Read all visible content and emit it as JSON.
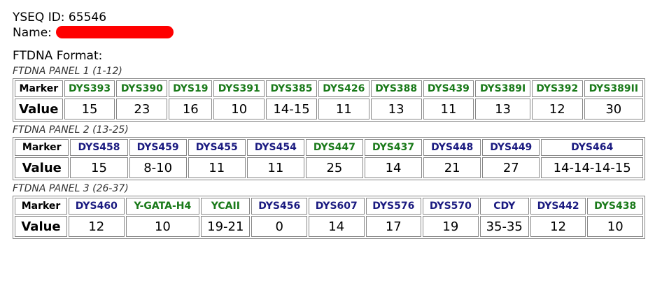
{
  "header": {
    "yseq_id": "YSEQ ID: 65546",
    "name": "Name:",
    "format": "FTDNA Format:"
  },
  "panels": [
    {
      "title": "FTDNA PANEL 1 (1-12)",
      "marker_label": "Marker",
      "value_label": "Value",
      "markers": [
        {
          "label": "DYS393",
          "color": "#1a7a1a"
        },
        {
          "label": "DYS390",
          "color": "#1a7a1a"
        },
        {
          "label": "DYS19",
          "color": "#1a7a1a"
        },
        {
          "label": "DYS391",
          "color": "#1a7a1a"
        },
        {
          "label": "DYS385",
          "color": "#1a7a1a"
        },
        {
          "label": "DYS426",
          "color": "#1a7a1a"
        },
        {
          "label": "DYS388",
          "color": "#1a7a1a"
        },
        {
          "label": "DYS439",
          "color": "#1a7a1a"
        },
        {
          "label": "DYS389I",
          "color": "#1a7a1a"
        },
        {
          "label": "DYS392",
          "color": "#1a7a1a"
        },
        {
          "label": "DYS389II",
          "color": "#1a7a1a"
        }
      ],
      "values": [
        "15",
        "23",
        "16",
        "10",
        "14-15",
        "11",
        "13",
        "11",
        "13",
        "12",
        "30"
      ]
    },
    {
      "title": "FTDNA PANEL 2 (13-25)",
      "marker_label": "Marker",
      "value_label": "Value",
      "markers": [
        {
          "label": "DYS458",
          "color": "#1a1a80"
        },
        {
          "label": "DYS459",
          "color": "#1a1a80"
        },
        {
          "label": "DYS455",
          "color": "#1a1a80"
        },
        {
          "label": "DYS454",
          "color": "#1a1a80"
        },
        {
          "label": "DYS447",
          "color": "#1a7a1a"
        },
        {
          "label": "DYS437",
          "color": "#1a7a1a"
        },
        {
          "label": "DYS448",
          "color": "#1a1a80"
        },
        {
          "label": "DYS449",
          "color": "#1a1a80"
        },
        {
          "label": "DYS464",
          "color": "#1a1a80"
        }
      ],
      "values": [
        "15",
        "8-10",
        "11",
        "11",
        "25",
        "14",
        "21",
        "27",
        "14-14-14-15"
      ]
    },
    {
      "title": "FTDNA PANEL 3 (26-37)",
      "marker_label": "Marker",
      "value_label": "Value",
      "markers": [
        {
          "label": "DYS460",
          "color": "#1a1a80"
        },
        {
          "label": "Y-GATA-H4",
          "color": "#1a7a1a"
        },
        {
          "label": "YCAII",
          "color": "#1a7a1a"
        },
        {
          "label": "DYS456",
          "color": "#1a1a80"
        },
        {
          "label": "DYS607",
          "color": "#1a1a80"
        },
        {
          "label": "DYS576",
          "color": "#1a1a80"
        },
        {
          "label": "DYS570",
          "color": "#1a1a80"
        },
        {
          "label": "CDY",
          "color": "#1a1a80"
        },
        {
          "label": "DYS442",
          "color": "#1a1a80"
        },
        {
          "label": "DYS438",
          "color": "#1a7a1a"
        }
      ],
      "values": [
        "12",
        "10",
        "19-21",
        "0",
        "14",
        "17",
        "19",
        "35-35",
        "12",
        "10"
      ]
    }
  ]
}
